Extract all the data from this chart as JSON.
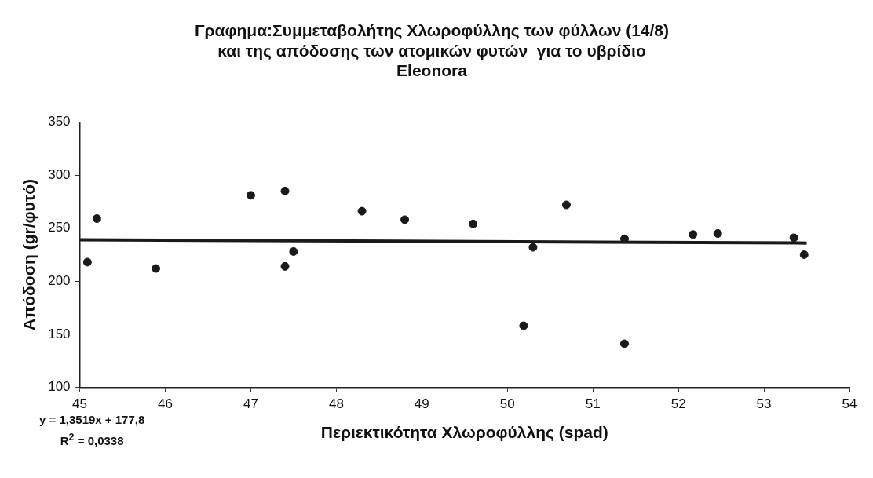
{
  "chart_data": {
    "type": "scatter",
    "title": "Γραφημα:Συμμεταβολήτης Χλωροφύλλης των φύλλων (14/8)\nκαι της απόδοσης των ατομικών φυτών  για το υβρίδιο\nEleonora",
    "xlabel": "Περιεκτικότητα Χλωροφύλλης (spad)",
    "ylabel": "Απόδοση (gr/φυτό)",
    "xlim": [
      45,
      54
    ],
    "xticks": [
      45,
      46,
      47,
      48,
      49,
      50,
      51,
      52,
      53,
      54
    ],
    "ylim": [
      100,
      350
    ],
    "yticks": [
      100,
      150,
      200,
      250,
      300,
      350
    ],
    "grid": false,
    "series": [
      {
        "color": "#1a1a1a",
        "marker": "circle",
        "x": [
          45.09,
          45.2,
          45.89,
          47.0,
          47.4,
          47.4,
          47.5,
          48.3,
          48.8,
          49.6,
          50.19,
          50.3,
          50.69,
          51.37,
          51.37,
          52.17,
          52.46,
          53.35,
          53.47
        ],
        "values": [
          218,
          259,
          212,
          281,
          285,
          214,
          228,
          266,
          258,
          254,
          158,
          232,
          272,
          141,
          240,
          244,
          245,
          241,
          225
        ]
      },
      {
        "type": "line",
        "color": "#1a1a1a",
        "marker": "none",
        "line_style": "solid",
        "x": [
          45,
          53.5
        ],
        "values": [
          239,
          236
        ]
      }
    ],
    "annotations": [
      "y = 1,3519x + 177,8",
      "R$^{2}$ = 0,0338"
    ]
  }
}
